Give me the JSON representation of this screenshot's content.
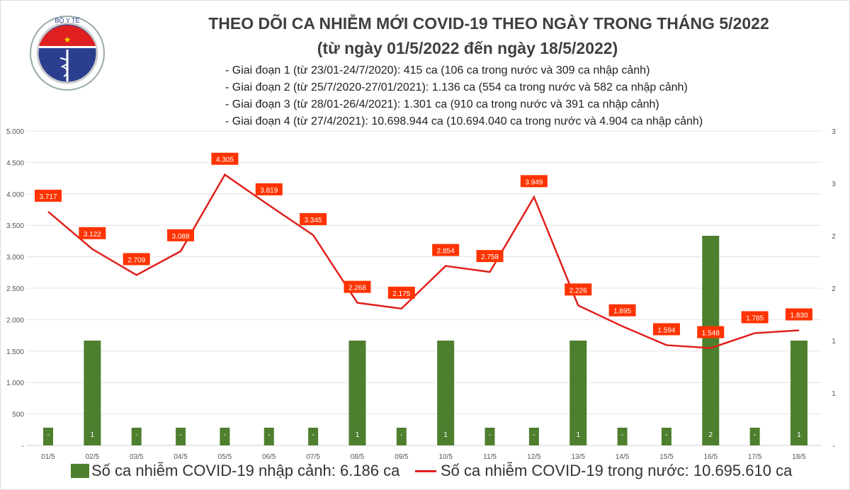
{
  "header": {
    "logo_text": "BỘ Y TẾ MINISTRY OF HEALTH",
    "title": "THEO DÕI CA NHIỄM MỚI COVID-19 THEO NGÀY TRONG THÁNG 5/2022",
    "subtitle": "(từ ngày 01/5/2022 đến ngày 18/5/2022)",
    "notes": [
      "- Giai đoạn 1 (từ 23/01-24/7/2020): 415 ca (106 ca trong nước và 309 ca nhập cảnh)",
      "- Giai đoạn 2 (từ 25/7/2020-27/01/2021): 1.136 ca (554 ca trong nước và 582 ca nhập cảnh)",
      "- Giai đoạn 3 (từ 28/01-26/4/2021): 1.301 ca (910 ca trong nước và 391 ca nhập cảnh)",
      "- Giai đoạn 4 (từ 27/4/2021): 10.698.944 ca (10.694.040 ca trong nước và 4.904 ca nhập cảnh)"
    ]
  },
  "chart_data": {
    "type": "bar+line",
    "categories": [
      "01/5",
      "02/5",
      "03/5",
      "04/5",
      "05/5",
      "06/5",
      "07/5",
      "08/5",
      "09/5",
      "10/5",
      "11/5",
      "12/5",
      "13/5",
      "14/5",
      "15/5",
      "16/5",
      "17/5",
      "18/5"
    ],
    "series": [
      {
        "name": "Số ca nhiễm COVID-19 nhập cảnh: 6.186 ca",
        "type": "bar",
        "axis": "right",
        "color": "#4e7f2e",
        "values": [
          0,
          1,
          0,
          0,
          0,
          0,
          0,
          1,
          0,
          1,
          0,
          0,
          1,
          0,
          0,
          2,
          0,
          1
        ],
        "labels": [
          "-",
          "1",
          "-",
          "-",
          "-",
          "-",
          "-",
          "1",
          "-",
          "1",
          "-",
          "-",
          "1",
          "-",
          "-",
          "2",
          "-",
          "1"
        ]
      },
      {
        "name": "Số ca nhiễm COVID-19 trong nước: 10.695.610 ca",
        "type": "line",
        "axis": "left",
        "color": "#e0201c",
        "values": [
          3717,
          3122,
          2709,
          3088,
          4305,
          3819,
          3345,
          2268,
          2175,
          2854,
          2758,
          3949,
          2226,
          1895,
          1594,
          1548,
          1785,
          1830
        ],
        "labels": [
          "3.717",
          "3.122",
          "2.709",
          "3.088",
          "4.305",
          "3.819",
          "3.345",
          "2.268",
          "2.175",
          "2.854",
          "2.758",
          "3.949",
          "2.226",
          "1.895",
          "1.594",
          "1.548",
          "1.785",
          "1.830"
        ]
      }
    ],
    "y_left": {
      "range": [
        0,
        5000
      ],
      "ticks": [
        "-",
        "500",
        "1.000",
        "1.500",
        "2.000",
        "2.500",
        "3.000",
        "3.500",
        "4.000",
        "4.500",
        "5.000"
      ]
    },
    "y_right": {
      "range": [
        0,
        3
      ],
      "ticks": [
        "-",
        "1",
        "1",
        "2",
        "2",
        "3",
        "3"
      ]
    },
    "grid": true,
    "legend": "bottom",
    "label_box_color": "#ff3300"
  }
}
